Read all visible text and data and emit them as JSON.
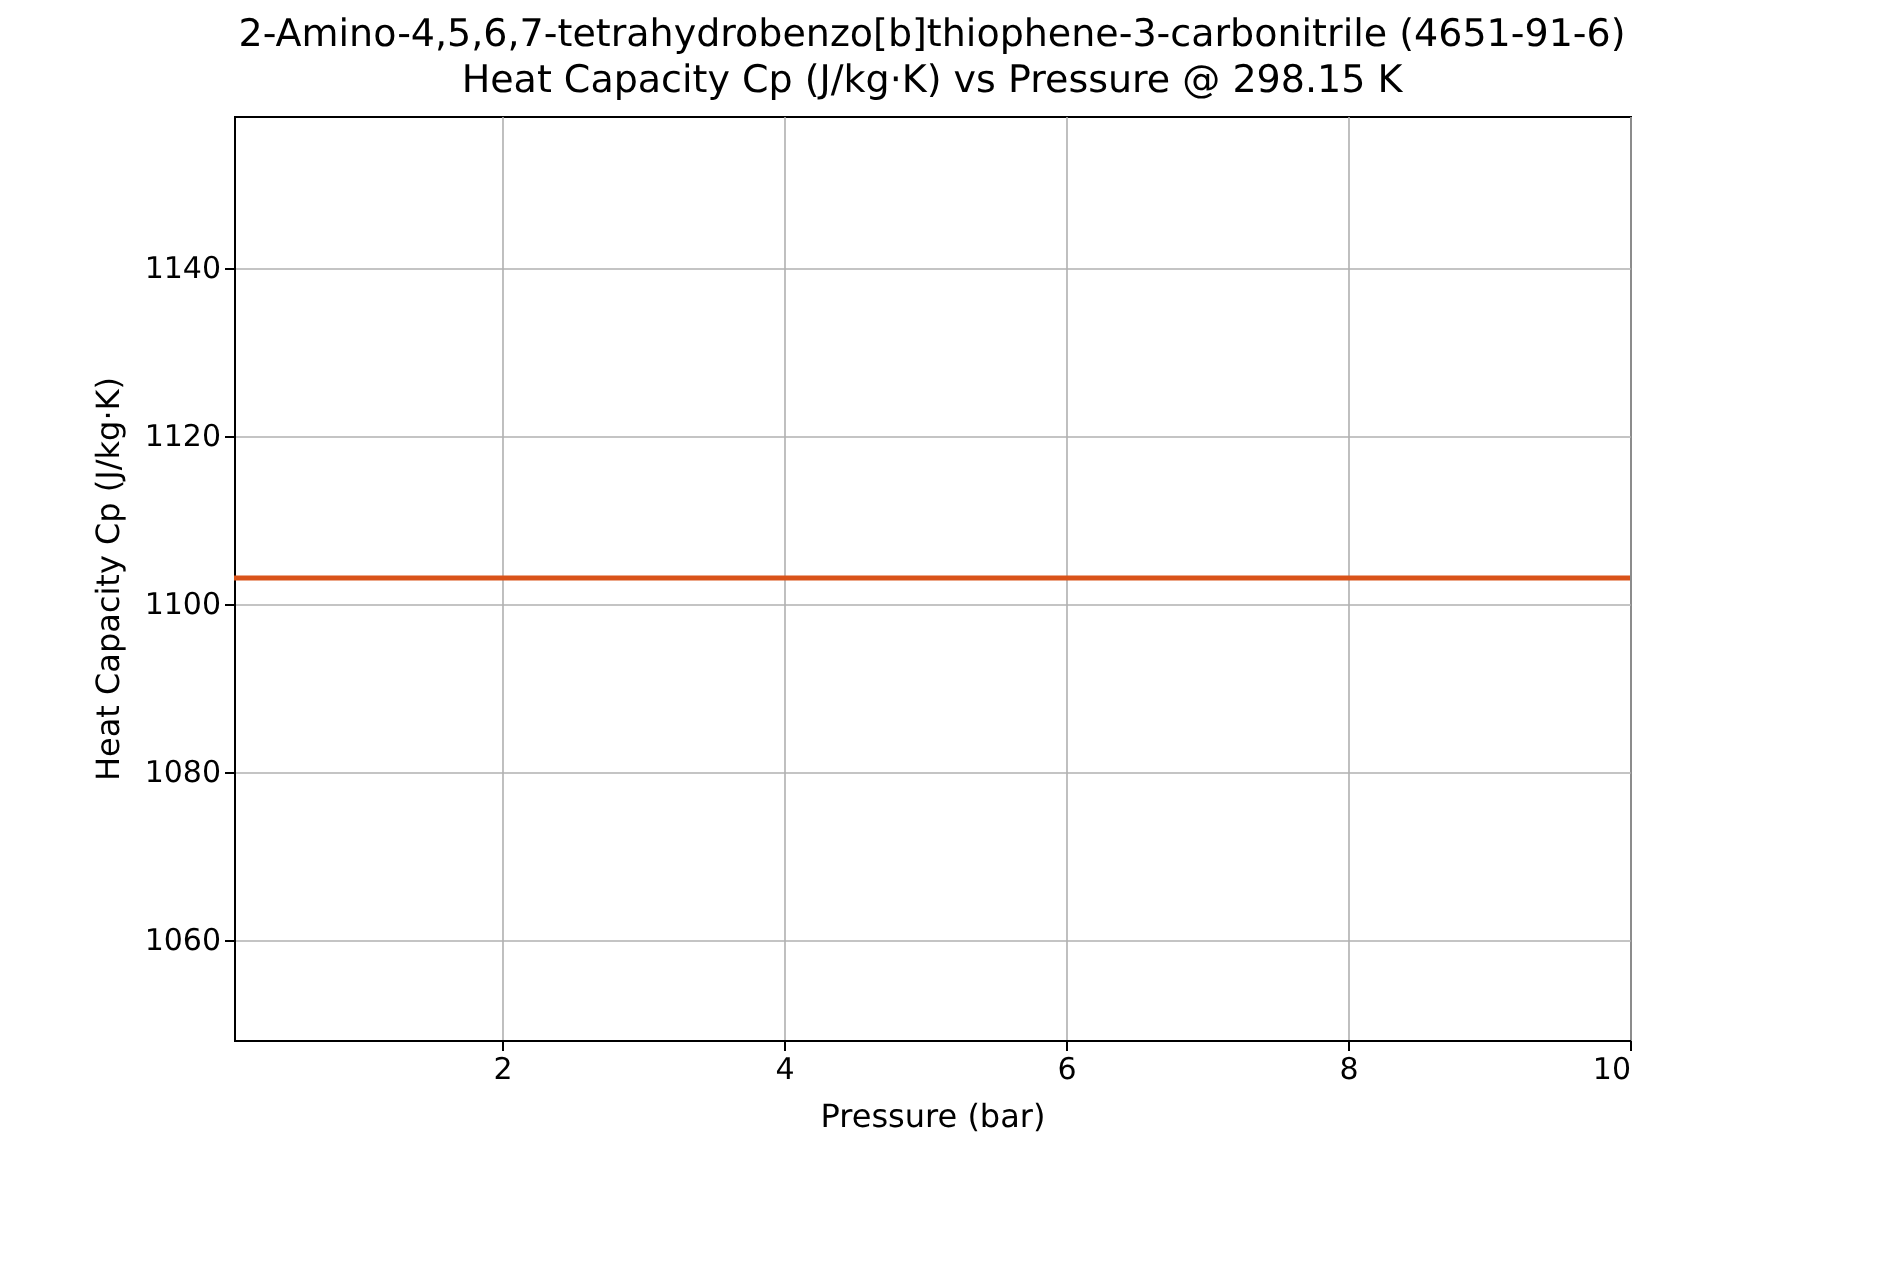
{
  "chart_data": {
    "type": "line",
    "title": "2-Amino-4,5,6,7-tetrahydrobenzo[b]thiophene-3-carbonitrile (4651-91-6)",
    "subtitle": "Heat Capacity Cp (J/kg·K) vs Pressure @ 298.15 K",
    "xlabel": "Pressure (bar)",
    "ylabel": "Heat Capacity Cp (J/kg·K)",
    "x": [
      0.1,
      10
    ],
    "series": [
      {
        "color": "#d95319",
        "values": [
          1103,
          1103
        ]
      }
    ],
    "xlim": [
      0.1,
      10
    ],
    "xticks": [
      2,
      4,
      6,
      8,
      10
    ],
    "ylim": [
      1048,
      1158
    ],
    "yticks": [
      1060,
      1080,
      1100,
      1120,
      1140
    ],
    "grid": true,
    "marker": "none",
    "line_style": "solid"
  }
}
